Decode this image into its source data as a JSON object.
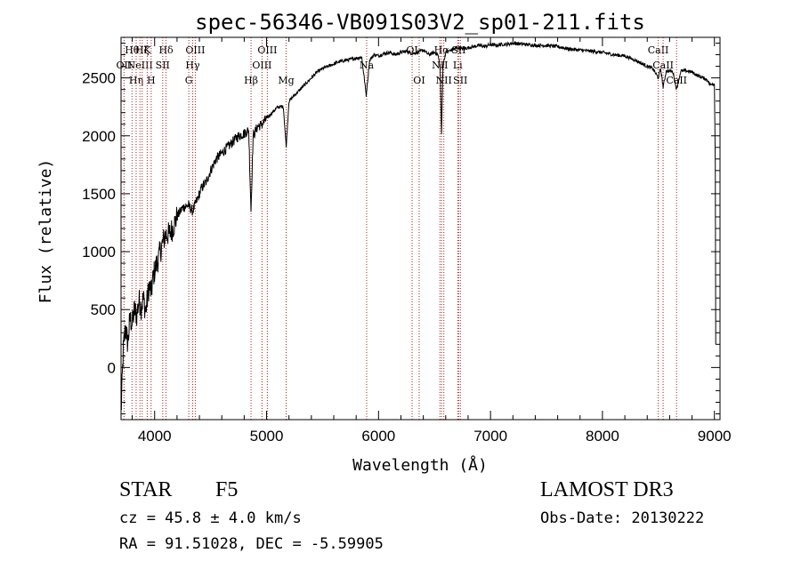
{
  "chart_data": {
    "type": "line",
    "title": "spec-56346-VB091S03V2_sp01-211.fits",
    "xlabel": "Wavelength (Å)",
    "ylabel": "Flux (relative)",
    "xlim": [
      3700,
      9050
    ],
    "ylim": [
      -450,
      2850
    ],
    "x_ticks": [
      4000,
      5000,
      6000,
      7000,
      8000,
      9000
    ],
    "y_ticks": [
      0,
      500,
      1000,
      1500,
      2000,
      2500
    ],
    "series": [
      {
        "name": "flux",
        "color": "#000000",
        "x": [
          3700,
          3720,
          3740,
          3760,
          3780,
          3800,
          3820,
          3840,
          3860,
          3880,
          3900,
          3920,
          3950,
          3970,
          3990,
          4020,
          4050,
          4080,
          4100,
          4130,
          4160,
          4200,
          4250,
          4300,
          4340,
          4380,
          4420,
          4460,
          4500,
          4550,
          4600,
          4650,
          4700,
          4750,
          4800,
          4840,
          4861,
          4880,
          4920,
          4960,
          5000,
          5050,
          5100,
          5150,
          5175,
          5200,
          5250,
          5300,
          5350,
          5400,
          5450,
          5500,
          5550,
          5600,
          5650,
          5700,
          5750,
          5800,
          5850,
          5890,
          5920,
          5960,
          6000,
          6050,
          6100,
          6150,
          6200,
          6250,
          6300,
          6350,
          6400,
          6450,
          6500,
          6530,
          6550,
          6563,
          6575,
          6600,
          6650,
          6700,
          6750,
          6800,
          6850,
          6900,
          6950,
          7000,
          7050,
          7100,
          7150,
          7200,
          7300,
          7400,
          7500,
          7600,
          7700,
          7800,
          7900,
          8000,
          8100,
          8200,
          8300,
          8400,
          8450,
          8498,
          8520,
          8542,
          8570,
          8600,
          8630,
          8662,
          8700,
          8750,
          8800,
          8850,
          8900,
          8940,
          8960,
          8980,
          9000
        ],
        "values": [
          -400,
          150,
          350,
          200,
          420,
          380,
          500,
          450,
          580,
          520,
          600,
          480,
          700,
          650,
          800,
          900,
          1000,
          1100,
          1150,
          1150,
          1200,
          1300,
          1380,
          1400,
          1350,
          1450,
          1550,
          1600,
          1700,
          1800,
          1850,
          1900,
          1950,
          2000,
          2020,
          2050,
          1350,
          2000,
          2080,
          2100,
          2150,
          2200,
          2250,
          2250,
          1900,
          2300,
          2350,
          2400,
          2450,
          2500,
          2550,
          2580,
          2600,
          2620,
          2640,
          2650,
          2660,
          2670,
          2680,
          2350,
          2650,
          2700,
          2690,
          2710,
          2720,
          2700,
          2720,
          2730,
          2710,
          2720,
          2740,
          2700,
          2720,
          2700,
          2600,
          2000,
          2600,
          2720,
          2740,
          2760,
          2750,
          2760,
          2770,
          2780,
          2770,
          2790,
          2780,
          2790,
          2790,
          2800,
          2790,
          2780,
          2780,
          2770,
          2750,
          2740,
          2730,
          2720,
          2700,
          2690,
          2650,
          2600,
          2580,
          2500,
          2580,
          2420,
          2560,
          2560,
          2550,
          2400,
          2560,
          2560,
          2550,
          2520,
          2500,
          2480,
          2440,
          2450,
          2450
        ]
      }
    ],
    "line_markers": [
      {
        "wl": 3727,
        "labels": [
          "OII"
        ],
        "rows": [
          1
        ]
      },
      {
        "wl": 3798,
        "labels": [
          "Hθ"
        ],
        "rows": [
          0
        ]
      },
      {
        "wl": 3835,
        "labels": [
          "Hη"
        ],
        "rows": [
          2
        ]
      },
      {
        "wl": 3869,
        "labels": [
          "NeIII"
        ],
        "rows": [
          1
        ]
      },
      {
        "wl": 3889,
        "labels": [
          "Hζ"
        ],
        "rows": [
          0
        ]
      },
      {
        "wl": 3934,
        "labels": [
          "K"
        ],
        "rows": [
          0
        ]
      },
      {
        "wl": 3969,
        "labels": [
          "H"
        ],
        "rows": [
          2
        ]
      },
      {
        "wl": 4072,
        "labels": [
          "SII"
        ],
        "rows": [
          1
        ]
      },
      {
        "wl": 4102,
        "labels": [
          "Hδ"
        ],
        "rows": [
          0
        ]
      },
      {
        "wl": 4305,
        "labels": [
          "G"
        ],
        "rows": [
          2
        ]
      },
      {
        "wl": 4340,
        "labels": [
          "Hγ"
        ],
        "rows": [
          1
        ]
      },
      {
        "wl": 4363,
        "labels": [
          "OIII"
        ],
        "rows": [
          0
        ]
      },
      {
        "wl": 4861,
        "labels": [
          "Hβ"
        ],
        "rows": [
          2
        ]
      },
      {
        "wl": 4959,
        "labels": [
          "OIII"
        ],
        "rows": [
          1
        ]
      },
      {
        "wl": 5007,
        "labels": [
          "OIII"
        ],
        "rows": [
          0
        ]
      },
      {
        "wl": 5175,
        "labels": [
          "Mg"
        ],
        "rows": [
          2
        ]
      },
      {
        "wl": 5894,
        "labels": [
          "Na"
        ],
        "rows": [
          1
        ]
      },
      {
        "wl": 6300,
        "labels": [
          "OI"
        ],
        "rows": [
          0
        ]
      },
      {
        "wl": 6363,
        "labels": [
          "OI"
        ],
        "rows": [
          2
        ]
      },
      {
        "wl": 6548,
        "labels": [
          "NII"
        ],
        "rows": [
          1
        ]
      },
      {
        "wl": 6563,
        "labels": [
          "Hα"
        ],
        "rows": [
          0
        ]
      },
      {
        "wl": 6583,
        "labels": [
          "NII"
        ],
        "rows": [
          2
        ]
      },
      {
        "wl": 6707,
        "labels": [
          "Li"
        ],
        "rows": [
          1
        ]
      },
      {
        "wl": 6716,
        "labels": [
          "SII"
        ],
        "rows": [
          0
        ]
      },
      {
        "wl": 6731,
        "labels": [
          "SII"
        ],
        "rows": [
          2
        ]
      },
      {
        "wl": 8498,
        "labels": [
          "CaII"
        ],
        "rows": [
          0
        ]
      },
      {
        "wl": 8542,
        "labels": [
          "CaII"
        ],
        "rows": [
          1
        ]
      },
      {
        "wl": 8662,
        "labels": [
          "CaII"
        ],
        "rows": [
          2
        ]
      }
    ],
    "marker_color": "#b22222"
  },
  "footer": {
    "class_label": "STAR",
    "subclass": "F5",
    "cz": "cz = 45.8 ± 4.0 km/s",
    "radec": "RA =  91.51028, DEC =  -5.59905",
    "survey": "LAMOST DR3",
    "obs_date": "Obs-Date: 20130222"
  }
}
